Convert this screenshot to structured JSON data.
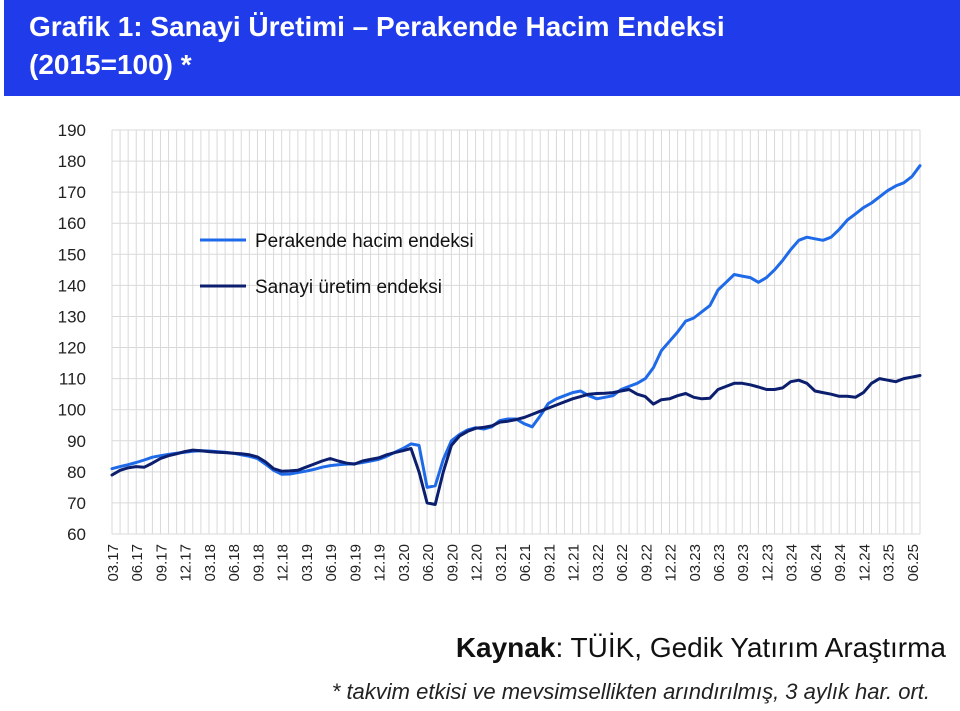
{
  "header": {
    "title_line1": "Grafik 1: Sanayi Üretimi – Perakende Hacim Endeksi",
    "title_line2": "(2015=100) *"
  },
  "footer": {
    "source_label": "Kaynak",
    "source_text": ": TÜİK, Gedik Yatırım Araştırma",
    "note": "* takvim etkisi ve mevsimsellikten arındırılmış, 3 aylık har. ort."
  },
  "colors": {
    "header_bg": "#1f3bea",
    "retail": "#1f6ae8",
    "industry": "#0c1f6e",
    "grid": "#d9d9d9"
  },
  "chart_data": {
    "type": "line",
    "title": "Grafik 1: Sanayi Üretimi – Perakende Hacim Endeksi (2015=100) *",
    "xlabel": "",
    "ylabel": "",
    "ylim": [
      60,
      190
    ],
    "yticks": [
      60,
      70,
      80,
      90,
      100,
      110,
      120,
      130,
      140,
      150,
      160,
      170,
      180,
      190
    ],
    "grid": true,
    "legend_position": "upper-left",
    "x_tick_labels": [
      "03.17",
      "06.17",
      "09.17",
      "12.17",
      "03.18",
      "06.18",
      "09.18",
      "12.18",
      "03.19",
      "06.19",
      "09.19",
      "12.19",
      "03.20",
      "06.20",
      "09.20",
      "12.20",
      "03.21",
      "06.21",
      "09.21",
      "12.21",
      "03.22",
      "06.22",
      "09.22",
      "12.22",
      "03.23",
      "06.23",
      "09.23",
      "12.23",
      "03.24",
      "06.24",
      "09.24",
      "12.24",
      "03.25",
      "06.25"
    ],
    "x": [
      "03.17",
      "04.17",
      "05.17",
      "06.17",
      "07.17",
      "08.17",
      "09.17",
      "10.17",
      "11.17",
      "12.17",
      "01.18",
      "02.18",
      "03.18",
      "04.18",
      "05.18",
      "06.18",
      "07.18",
      "08.18",
      "09.18",
      "10.18",
      "11.18",
      "12.18",
      "01.19",
      "02.19",
      "03.19",
      "04.19",
      "05.19",
      "06.19",
      "07.19",
      "08.19",
      "09.19",
      "10.19",
      "11.19",
      "12.19",
      "01.20",
      "02.20",
      "03.20",
      "04.20",
      "05.20",
      "06.20",
      "07.20",
      "08.20",
      "09.20",
      "10.20",
      "11.20",
      "12.20",
      "01.21",
      "02.21",
      "03.21",
      "04.21",
      "05.21",
      "06.21",
      "07.21",
      "08.21",
      "09.21",
      "10.21",
      "11.21",
      "12.21",
      "01.22",
      "02.22",
      "03.22",
      "04.22",
      "05.22",
      "06.22",
      "07.22",
      "08.22",
      "09.22",
      "10.22",
      "11.22",
      "12.22",
      "01.23",
      "02.23",
      "03.23",
      "04.23",
      "05.23",
      "06.23",
      "07.23",
      "08.23",
      "09.23",
      "10.23",
      "11.23",
      "12.23",
      "01.24",
      "02.24",
      "03.24",
      "04.24",
      "05.24",
      "06.24",
      "07.24",
      "08.24",
      "09.24",
      "10.24",
      "11.24",
      "12.24",
      "01.25",
      "02.25",
      "03.25",
      "04.25",
      "05.25",
      "06.25",
      "07.25"
    ],
    "series": [
      {
        "name": "Perakende hacim endeksi",
        "color": "#1f6ae8",
        "values": [
          81,
          81.7,
          82.3,
          83,
          83.8,
          84.7,
          85.2,
          85.6,
          86,
          86.3,
          86.6,
          86.8,
          86.7,
          86.5,
          86.3,
          86,
          85.5,
          85,
          84.3,
          82.5,
          80.5,
          79.2,
          79.3,
          79.8,
          80.2,
          80.8,
          81.5,
          82,
          82.3,
          82.5,
          82.6,
          83,
          83.5,
          84,
          85,
          86.3,
          87.5,
          89,
          88.5,
          75,
          75.5,
          84,
          90,
          92,
          93.5,
          94.2,
          93.8,
          94.5,
          96.5,
          97,
          97,
          95.5,
          94.5,
          98,
          102,
          103.5,
          104.5,
          105.5,
          106,
          104.5,
          103.5,
          104,
          104.5,
          106.5,
          107.5,
          108.5,
          110,
          113.5,
          119,
          122,
          125,
          128.5,
          129.5,
          131.5,
          133.5,
          138.5,
          141,
          143.5,
          143,
          142.5,
          141,
          142.5,
          145,
          148,
          151.5,
          154.5,
          155.5,
          155,
          154.5,
          155.5,
          158,
          161,
          163,
          165,
          166.5,
          168.5,
          170.5,
          172,
          173,
          175,
          178.5
        ]
      },
      {
        "name": "Sanayi üretim endeksi",
        "color": "#0c1f6e",
        "values": [
          79,
          80.5,
          81.3,
          81.7,
          81.5,
          82.8,
          84.3,
          85.2,
          85.8,
          86.5,
          87,
          86.8,
          86.5,
          86.3,
          86.2,
          86,
          85.8,
          85.5,
          84.8,
          83.2,
          81,
          80.2,
          80.3,
          80.5,
          81.5,
          82.5,
          83.5,
          84.3,
          83.5,
          82.8,
          82.5,
          83.5,
          84,
          84.5,
          85.5,
          86.2,
          86.8,
          87.5,
          80,
          70,
          69.5,
          80,
          88.5,
          91.5,
          93,
          94,
          94.3,
          94.8,
          96,
          96.3,
          96.8,
          97.5,
          98.5,
          99.5,
          100.5,
          101.5,
          102.5,
          103.5,
          104.2,
          105,
          105.2,
          105.3,
          105.5,
          106,
          106.5,
          105,
          104.2,
          101.8,
          103.2,
          103.5,
          104.5,
          105.2,
          104,
          103.5,
          103.7,
          106.5,
          107.5,
          108.5,
          108.5,
          108,
          107.3,
          106.5,
          106.5,
          107,
          109,
          109.5,
          108.5,
          106,
          105.5,
          105,
          104.3,
          104.3,
          104,
          105.5,
          108.5,
          110,
          109.5,
          109,
          110,
          110.5,
          111
        ]
      }
    ]
  }
}
